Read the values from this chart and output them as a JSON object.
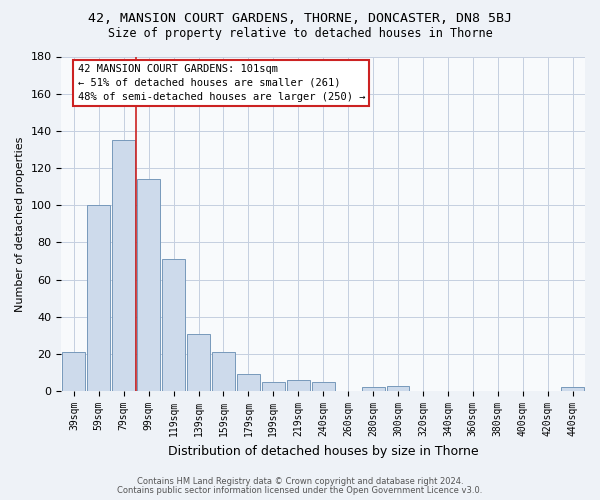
{
  "title_line1": "42, MANSION COURT GARDENS, THORNE, DONCASTER, DN8 5BJ",
  "title_line2": "Size of property relative to detached houses in Thorne",
  "xlabel": "Distribution of detached houses by size in Thorne",
  "ylabel": "Number of detached properties",
  "footnote_line1": "Contains HM Land Registry data © Crown copyright and database right 2024.",
  "footnote_line2": "Contains public sector information licensed under the Open Government Licence v3.0.",
  "bar_labels": [
    "39sqm",
    "59sqm",
    "79sqm",
    "99sqm",
    "119sqm",
    "139sqm",
    "159sqm",
    "179sqm",
    "199sqm",
    "219sqm",
    "240sqm",
    "260sqm",
    "280sqm",
    "300sqm",
    "320sqm",
    "340sqm",
    "360sqm",
    "380sqm",
    "400sqm",
    "420sqm",
    "440sqm"
  ],
  "bar_values": [
    21,
    100,
    135,
    114,
    71,
    31,
    21,
    9,
    5,
    6,
    5,
    0,
    2,
    3,
    0,
    0,
    0,
    0,
    0,
    0,
    2
  ],
  "bar_color": "#cddaeb",
  "bar_edge_color": "#7799bb",
  "ylim": [
    0,
    180
  ],
  "yticks": [
    0,
    20,
    40,
    60,
    80,
    100,
    120,
    140,
    160,
    180
  ],
  "vline_x_index": 3,
  "vline_color": "#cc2222",
  "annotation_text": "42 MANSION COURT GARDENS: 101sqm\n← 51% of detached houses are smaller (261)\n48% of semi-detached houses are larger (250) →",
  "annotation_box_edge_color": "#cc2222",
  "bg_color": "#eef2f7",
  "plot_bg_color": "#f8fafc",
  "grid_color": "#c5cfe0"
}
